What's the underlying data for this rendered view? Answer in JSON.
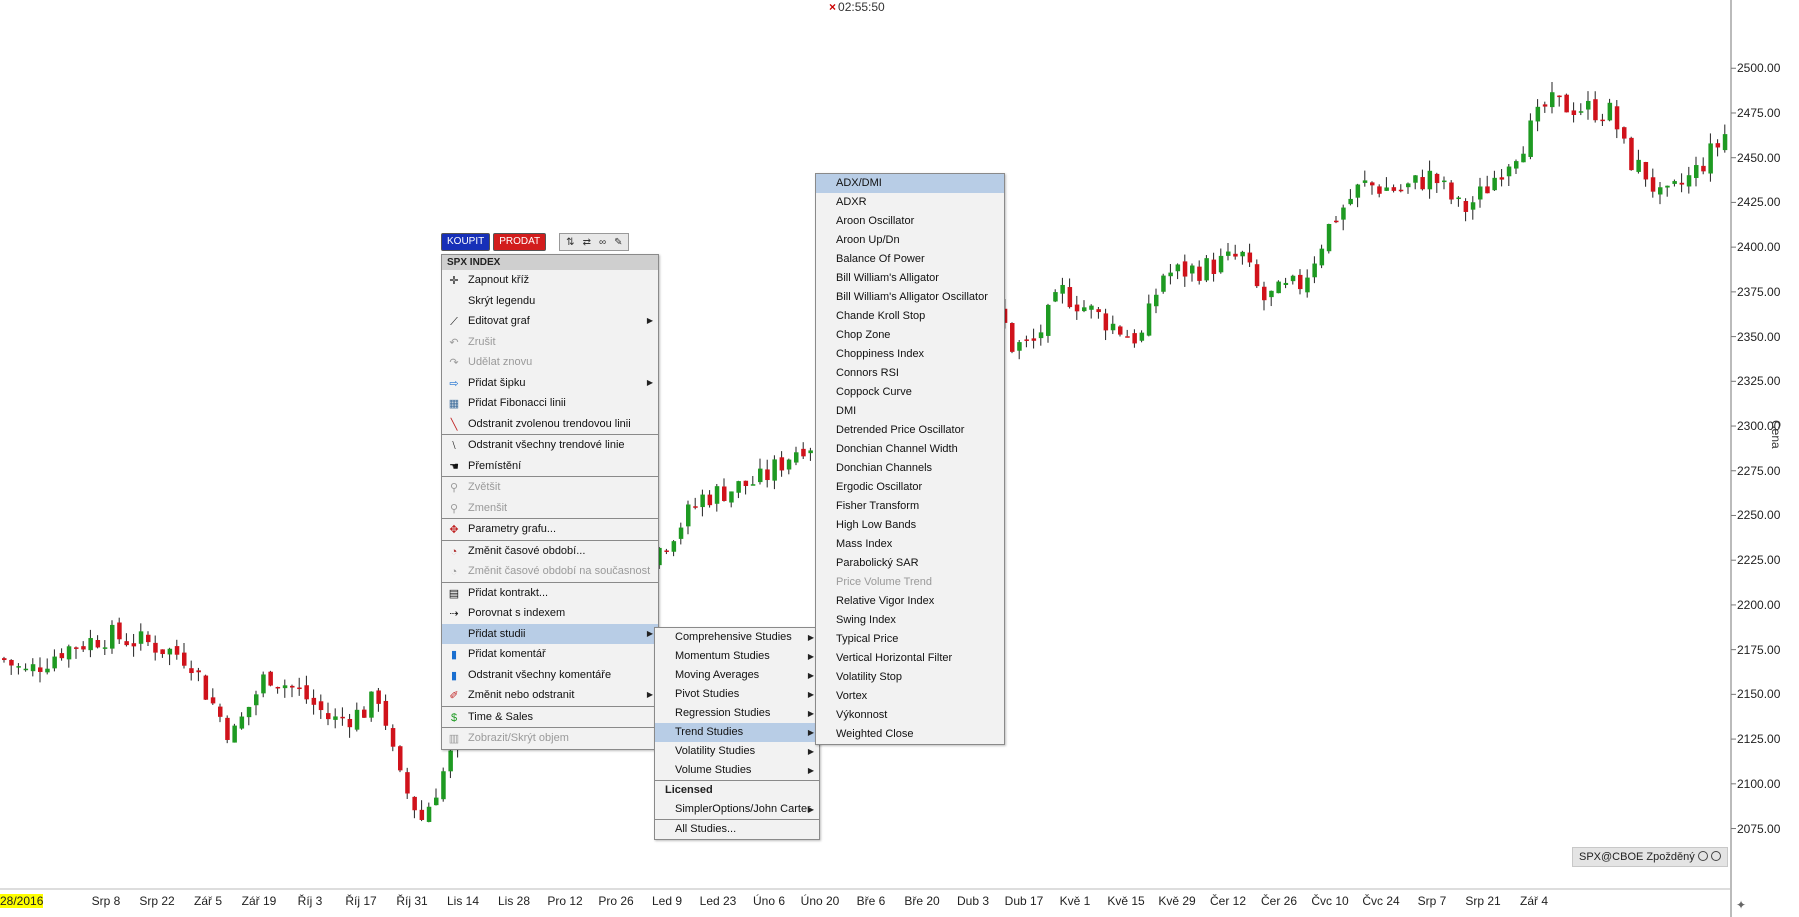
{
  "clock": "02:55:50",
  "axis": {
    "y_title": "Cena",
    "y_ticks": [
      "2500.00",
      "2475.00",
      "2450.00",
      "2425.00",
      "2400.00",
      "2375.00",
      "2350.00",
      "2325.00",
      "2300.00",
      "2275.00",
      "2250.00",
      "2225.00",
      "2200.00",
      "2175.00",
      "2150.00",
      "2125.00",
      "2100.00",
      "2075.00"
    ],
    "x_ticks": [
      "28/2016",
      "Srp 8",
      "Srp 22",
      "Zář 5",
      "Zář 19",
      "Říj 3",
      "Říj 17",
      "Říj 31",
      "Lis 14",
      "Lis 28",
      "Pro 12",
      "Pro 26",
      "Led 9",
      "Led 23",
      "Úno 6",
      "Úno 20",
      "Bře 6",
      "Bře 20",
      "Dub 3",
      "Dub 17",
      "Kvě 1",
      "Kvě 15",
      "Kvě 29",
      "Čer 12",
      "Čer 26",
      "Čvc 10",
      "Čvc 24",
      "Srp 7",
      "Srp 21",
      "Zář 4"
    ]
  },
  "source_label": "SPX@CBOE Zpožděný",
  "trade": {
    "buy": "KOUPIT",
    "sell": "PRODAT"
  },
  "colors": {
    "up": "#1e9a22",
    "down": "#d0121b",
    "highlight": "#b8cde6",
    "buy": "#1730b8",
    "sell": "#d21d1d"
  },
  "context_menu": {
    "header": "SPX INDEX",
    "items": [
      {
        "label": "Zapnout kříž",
        "icon": "crosshair-icon"
      },
      {
        "label": "Skrýt legendu",
        "icon": ""
      },
      {
        "label": "Editovat graf",
        "icon": "edit-chart-icon",
        "submenu": true
      },
      {
        "label": "Zrušit",
        "icon": "undo-icon",
        "disabled": true
      },
      {
        "label": "Udělat znovu",
        "icon": "redo-icon",
        "disabled": true
      },
      {
        "label": "Přidat šipku",
        "icon": "arrow-icon",
        "submenu": true
      },
      {
        "label": "Přidat Fibonacci linii",
        "icon": "fibonacci-icon"
      },
      {
        "label": "Odstranit zvolenou trendovou linii",
        "icon": "trendline-icon",
        "sep_after": true
      },
      {
        "label": "Odstranit všechny trendové linie",
        "icon": "trendlines-icon"
      },
      {
        "label": "Přemístění",
        "icon": "hand-icon",
        "sep_after": true
      },
      {
        "label": "Zvětšit",
        "icon": "zoom-in-icon",
        "disabled": true
      },
      {
        "label": "Zmenšit",
        "icon": "zoom-out-icon",
        "disabled": true,
        "sep_after": true
      },
      {
        "label": "Parametry grafu...",
        "icon": "chart-params-icon",
        "sep_after": true
      },
      {
        "label": "Změnit časové období...",
        "icon": "time-period-icon"
      },
      {
        "label": "Změnit časové období na současnost",
        "icon": "time-now-icon",
        "disabled": true,
        "sep_after": true
      },
      {
        "label": "Přidat kontrakt...",
        "icon": "add-contract-icon"
      },
      {
        "label": "Porovnat s indexem",
        "icon": "compare-icon"
      },
      {
        "label": "Přidat studii",
        "icon": "",
        "submenu": true,
        "highlight": true
      },
      {
        "label": "Přidat komentář",
        "icon": "comment-icon"
      },
      {
        "label": "Odstranit všechny komentáře",
        "icon": "remove-comments-icon"
      },
      {
        "label": "Změnit nebo odstranit",
        "icon": "pencil-icon",
        "submenu": true,
        "sep_after": true
      },
      {
        "label": "Time & Sales",
        "icon": "dollar-icon",
        "sep_after": true
      },
      {
        "label": "Zobrazit/Skrýt objem",
        "icon": "volume-icon",
        "disabled": true
      }
    ]
  },
  "studies_menu": {
    "items": [
      {
        "label": "Comprehensive Studies",
        "submenu": true
      },
      {
        "label": "Momentum Studies",
        "submenu": true
      },
      {
        "label": "Moving Averages",
        "submenu": true
      },
      {
        "label": "Pivot Studies",
        "submenu": true
      },
      {
        "label": "Regression Studies",
        "submenu": true
      },
      {
        "label": "Trend Studies",
        "submenu": true,
        "highlight": true
      },
      {
        "label": "Volatility Studies",
        "submenu": true
      },
      {
        "label": "Volume Studies",
        "submenu": true,
        "sep_after": true
      },
      {
        "label": "Licensed",
        "type": "label"
      },
      {
        "label": "SimplerOptions/John Carter",
        "submenu": true,
        "sep_after": true
      },
      {
        "label": "All Studies..."
      }
    ]
  },
  "trend_menu": {
    "items": [
      {
        "label": "ADX/DMI",
        "highlight": true
      },
      {
        "label": "ADXR"
      },
      {
        "label": "Aroon Oscillator"
      },
      {
        "label": "Aroon Up/Dn"
      },
      {
        "label": "Balance Of Power"
      },
      {
        "label": "Bill William's Alligator"
      },
      {
        "label": "Bill William's Alligator Oscillator"
      },
      {
        "label": "Chande Kroll Stop"
      },
      {
        "label": "Chop Zone"
      },
      {
        "label": "Choppiness Index"
      },
      {
        "label": "Connors RSI"
      },
      {
        "label": "Coppock Curve"
      },
      {
        "label": "DMI"
      },
      {
        "label": "Detrended Price Oscillator"
      },
      {
        "label": "Donchian Channel Width"
      },
      {
        "label": "Donchian Channels"
      },
      {
        "label": "Ergodic Oscillator"
      },
      {
        "label": "Fisher Transform"
      },
      {
        "label": "High Low Bands"
      },
      {
        "label": "Mass Index"
      },
      {
        "label": "Parabolický SAR"
      },
      {
        "label": "Price Volume Trend",
        "disabled": true
      },
      {
        "label": "Relative Vigor Index"
      },
      {
        "label": "Swing Index"
      },
      {
        "label": "Typical Price"
      },
      {
        "label": "Vertical Horizontal Filter"
      },
      {
        "label": "Volatility Stop"
      },
      {
        "label": "Vortex"
      },
      {
        "label": "Výkonnost"
      },
      {
        "label": "Weighted Close"
      }
    ]
  },
  "chart_data": {
    "type": "candlestick",
    "series": [
      {
        "anchors": [
          [
            0,
            2170
          ],
          [
            24,
            2162
          ],
          [
            60,
            2175
          ],
          [
            105,
            2183
          ],
          [
            150,
            2178
          ],
          [
            188,
            2170
          ],
          [
            205,
            2150
          ],
          [
            230,
            2126
          ],
          [
            265,
            2162
          ],
          [
            300,
            2150
          ],
          [
            330,
            2135
          ],
          [
            360,
            2140
          ],
          [
            378,
            2150
          ],
          [
            395,
            2105
          ],
          [
            420,
            2080
          ],
          [
            448,
            2115
          ],
          [
            500,
            2160
          ],
          [
            560,
            2205
          ],
          [
            640,
            2220
          ],
          [
            700,
            2260
          ],
          [
            760,
            2270
          ],
          [
            800,
            2290
          ],
          [
            840,
            2290
          ],
          [
            870,
            2280
          ],
          [
            940,
            2325
          ],
          [
            980,
            2370
          ],
          [
            1000,
            2360
          ],
          [
            1010,
            2345
          ],
          [
            1030,
            2345
          ],
          [
            1060,
            2375
          ],
          [
            1100,
            2360
          ],
          [
            1130,
            2350
          ],
          [
            1140,
            2350
          ],
          [
            1160,
            2385
          ],
          [
            1200,
            2388
          ],
          [
            1240,
            2395
          ],
          [
            1260,
            2370
          ],
          [
            1300,
            2380
          ],
          [
            1330,
            2415
          ],
          [
            1360,
            2435
          ],
          [
            1400,
            2432
          ],
          [
            1430,
            2440
          ],
          [
            1460,
            2420
          ],
          [
            1480,
            2430
          ],
          [
            1500,
            2445
          ],
          [
            1520,
            2458
          ],
          [
            1545,
            2480
          ],
          [
            1580,
            2478
          ],
          [
            1610,
            2475
          ],
          [
            1625,
            2450
          ],
          [
            1645,
            2440
          ],
          [
            1660,
            2425
          ],
          [
            1690,
            2440
          ],
          [
            1720,
            2460
          ],
          [
            1735,
            2477
          ]
        ],
        "ylim": [
          2063,
          2513
        ]
      }
    ]
  }
}
